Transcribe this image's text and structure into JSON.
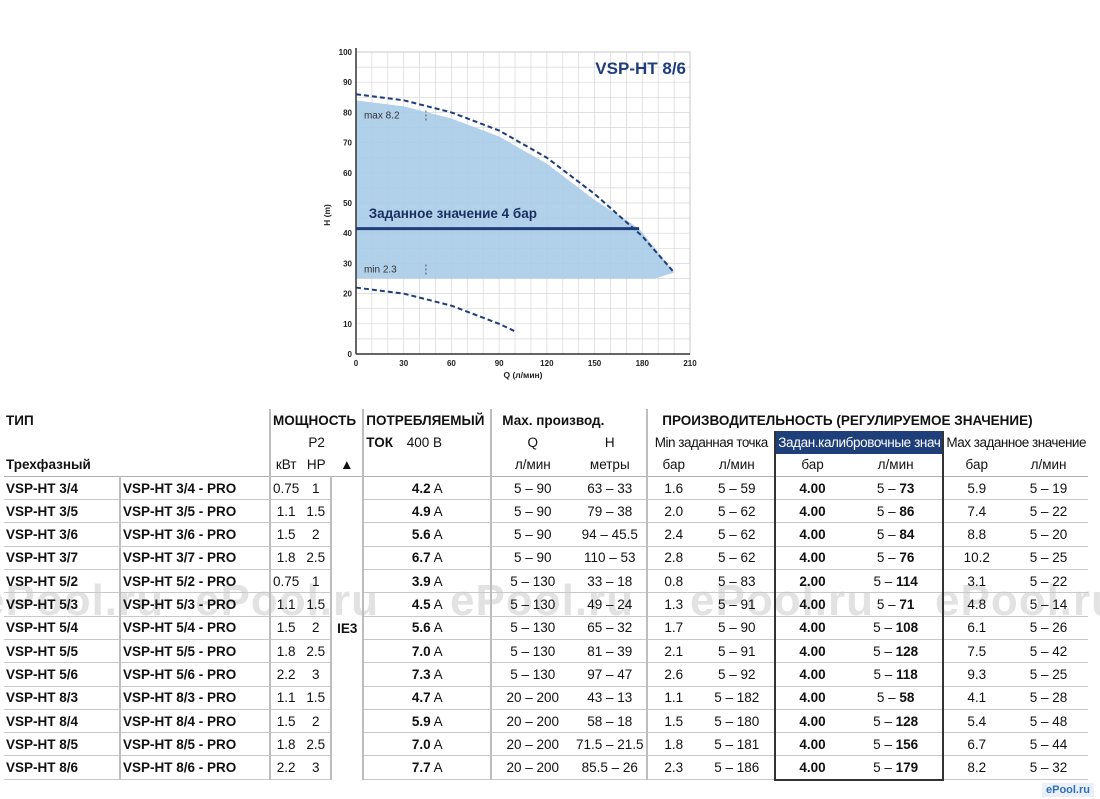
{
  "chart_data": {
    "type": "area",
    "title": "VSP-HT 8/6",
    "xlabel": "Q (л/мин)",
    "ylabel": "H (m)",
    "xlim": [
      0,
      210
    ],
    "ylim": [
      0,
      100
    ],
    "xticks": [
      0,
      30,
      60,
      90,
      120,
      150,
      180,
      210
    ],
    "yticks": [
      0,
      10,
      20,
      30,
      40,
      50,
      60,
      70,
      80,
      90,
      100
    ],
    "grid": true,
    "series": [
      {
        "values": [
          [
            0,
            86
          ],
          [
            30,
            84
          ],
          [
            60,
            80
          ],
          [
            90,
            74
          ],
          [
            120,
            65
          ],
          [
            150,
            53
          ],
          [
            180,
            39
          ],
          [
            200,
            27
          ]
        ],
        "style": "dashed"
      },
      {
        "values": [
          [
            0,
            22
          ],
          [
            30,
            20
          ],
          [
            60,
            16
          ],
          [
            90,
            10
          ],
          [
            100,
            7.5
          ]
        ],
        "style": "dashed"
      },
      {
        "name": "Заданное значение 4 бар",
        "values": [
          [
            0,
            41.5
          ],
          [
            178,
            41.5
          ]
        ],
        "style": "solid"
      }
    ],
    "region": {
      "color": "#a9cbe8",
      "upper": [
        [
          0,
          84
        ],
        [
          30,
          82
        ],
        [
          60,
          78
        ],
        [
          90,
          72
        ],
        [
          120,
          63
        ],
        [
          150,
          51
        ],
        [
          178,
          41.5
        ],
        [
          200,
          27
        ]
      ],
      "lower": 25
    },
    "annotations": [
      {
        "text": "max 8.2",
        "x": 5,
        "y": 78
      },
      {
        "text": "min 2.3",
        "x": 5,
        "y": 27
      }
    ],
    "colors": {
      "fill": "#a9cbe8",
      "line": "#1f3d7a",
      "title": "#1f3d7a"
    }
  },
  "watermark": [
    "ePool.ru",
    "ePool.ru",
    "ePool.ru",
    "ePool.ru",
    "ePool.ru"
  ],
  "logo": "ePool.ru",
  "table": {
    "header": {
      "tip": "ТИП",
      "power": "МОЩНОСТЬ",
      "p2": "P2",
      "current": "ПОТРЕБЛЯЕМЫЙ",
      "current2": "ТОК",
      "voltage": "400 В",
      "maxperf": "Мах. производ.",
      "perf": "ПРОИЗВОДИТЕЛЬНОСТЬ (РЕГУЛИРУЕМОЕ ЗНАЧЕНИЕ)",
      "q": "Q",
      "h": "H",
      "min_set": "Min заданная точка",
      "calib": "Задан.калибровочные знач",
      "max_set": "Мах заданное значение",
      "three_phase": "Трехфазный",
      "kw": "кВт",
      "hp": "HP",
      "triangle": "▲",
      "lmin": "л/мин",
      "meters": "метры",
      "bar": "бар",
      "ie3": "IE3"
    },
    "rows": [
      {
        "model": "VSP-HT 3/4",
        "pro": "VSP-HT 3/4 - PRO",
        "kw": "0.75",
        "hp": "1",
        "amp": "4.2",
        "unit": "A",
        "q": "5 – 90",
        "h": "63 – 33",
        "min_bar": "1.6",
        "min_q": "5 – 59",
        "cal_bar": "4.00",
        "cal_q1": "5 – ",
        "cal_q2": "73",
        "max_bar": "5.9",
        "max_q": "5 – 19"
      },
      {
        "model": "VSP-HT 3/5",
        "pro": "VSP-HT 3/5 - PRO",
        "kw": "1.1",
        "hp": "1.5",
        "amp": "4.9",
        "unit": "A",
        "q": "5 – 90",
        "h": "79 – 38",
        "min_bar": "2.0",
        "min_q": "5 – 62",
        "cal_bar": "4.00",
        "cal_q1": "5 – ",
        "cal_q2": "86",
        "max_bar": "7.4",
        "max_q": "5 – 22"
      },
      {
        "model": "VSP-HT 3/6",
        "pro": "VSP-HT 3/6 - PRO",
        "kw": "1.5",
        "hp": "2",
        "amp": "5.6",
        "unit": "A",
        "q": "5 – 90",
        "h": "94 – 45.5",
        "min_bar": "2.4",
        "min_q": "5 – 62",
        "cal_bar": "4.00",
        "cal_q1": "5 – ",
        "cal_q2": "84",
        "max_bar": "8.8",
        "max_q": "5 – 20"
      },
      {
        "model": "VSP-HT 3/7",
        "pro": "VSP-HT 3/7 - PRO",
        "kw": "1.8",
        "hp": "2.5",
        "amp": "6.7",
        "unit": "A",
        "q": "5 – 90",
        "h": "110 – 53",
        "min_bar": "2.8",
        "min_q": "5 – 62",
        "cal_bar": "4.00",
        "cal_q1": "5 – ",
        "cal_q2": "76",
        "max_bar": "10.2",
        "max_q": "5 – 25"
      },
      {
        "model": "VSP-HT 5/2",
        "pro": "VSP-HT 5/2 - PRO",
        "kw": "0.75",
        "hp": "1",
        "amp": "3.9",
        "unit": "A",
        "q": "5 – 130",
        "h": "33 – 18",
        "min_bar": "0.8",
        "min_q": "5 – 83",
        "cal_bar": "2.00",
        "cal_q1": "5 – ",
        "cal_q2": "114",
        "max_bar": "3.1",
        "max_q": "5 – 22"
      },
      {
        "model": "VSP-HT 5/3",
        "pro": "VSP-HT 5/3 - PRO",
        "kw": "1.1",
        "hp": "1.5",
        "amp": "4.5",
        "unit": "A",
        "q": "5 – 130",
        "h": "49 – 24",
        "min_bar": "1.3",
        "min_q": "5 – 91",
        "cal_bar": "4.00",
        "cal_q1": "5 – ",
        "cal_q2": "71",
        "max_bar": "4.8",
        "max_q": "5 – 14"
      },
      {
        "model": "VSP-HT 5/4",
        "pro": "VSP-HT 5/4 - PRO",
        "kw": "1.5",
        "hp": "2",
        "amp": "5.6",
        "unit": "A",
        "q": "5 – 130",
        "h": "65 – 32",
        "min_bar": "1.7",
        "min_q": "5 – 90",
        "cal_bar": "4.00",
        "cal_q1": "5 – ",
        "cal_q2": "108",
        "max_bar": "6.1",
        "max_q": "5 – 26"
      },
      {
        "model": "VSP-HT 5/5",
        "pro": "VSP-HT 5/5 - PRO",
        "kw": "1.8",
        "hp": "2.5",
        "amp": "7.0",
        "unit": "A",
        "q": "5 – 130",
        "h": "81 – 39",
        "min_bar": "2.1",
        "min_q": "5 – 91",
        "cal_bar": "4.00",
        "cal_q1": "5 – ",
        "cal_q2": "128",
        "max_bar": "7.5",
        "max_q": "5 – 42"
      },
      {
        "model": "VSP-HT 5/6",
        "pro": "VSP-HT 5/6 - PRO",
        "kw": "2.2",
        "hp": "3",
        "amp": "7.3",
        "unit": "A",
        "q": "5 – 130",
        "h": "97 – 47",
        "min_bar": "2.6",
        "min_q": "5 – 92",
        "cal_bar": "4.00",
        "cal_q1": "5 – ",
        "cal_q2": "118",
        "max_bar": "9.3",
        "max_q": "5 – 25"
      },
      {
        "model": "VSP-HT 8/3",
        "pro": "VSP-HT 8/3 - PRO",
        "kw": "1.1",
        "hp": "1.5",
        "amp": "4.7",
        "unit": "A",
        "q": "20 – 200",
        "h": "43 – 13",
        "min_bar": "1.1",
        "min_q": "5 – 182",
        "cal_bar": "4.00",
        "cal_q1": "5 – ",
        "cal_q2": "58",
        "max_bar": "4.1",
        "max_q": "5 – 28"
      },
      {
        "model": "VSP-HT 8/4",
        "pro": "VSP-HT 8/4 - PRO",
        "kw": "1.5",
        "hp": "2",
        "amp": "5.9",
        "unit": "A",
        "q": "20 – 200",
        "h": "58 – 18",
        "min_bar": "1.5",
        "min_q": "5 – 180",
        "cal_bar": "4.00",
        "cal_q1": "5 – ",
        "cal_q2": "128",
        "max_bar": "5.4",
        "max_q": "5 – 48"
      },
      {
        "model": "VSP-HT 8/5",
        "pro": "VSP-HT 8/5 - PRO",
        "kw": "1.8",
        "hp": "2.5",
        "amp": "7.0",
        "unit": "A",
        "q": "20 – 200",
        "h": "71.5 – 21.5",
        "min_bar": "1.8",
        "min_q": "5 – 181",
        "cal_bar": "4.00",
        "cal_q1": "5 – ",
        "cal_q2": "156",
        "max_bar": "6.7",
        "max_q": "5 – 44"
      },
      {
        "model": "VSP-HT 8/6",
        "pro": "VSP-HT 8/6 - PRO",
        "kw": "2.2",
        "hp": "3",
        "amp": "7.7",
        "unit": "A",
        "q": "20 – 200",
        "h": "85.5 – 26",
        "min_bar": "2.3",
        "min_q": "5 – 186",
        "cal_bar": "4.00",
        "cal_q1": "5 – ",
        "cal_q2": "179",
        "max_bar": "8.2",
        "max_q": "5 – 32"
      }
    ]
  }
}
